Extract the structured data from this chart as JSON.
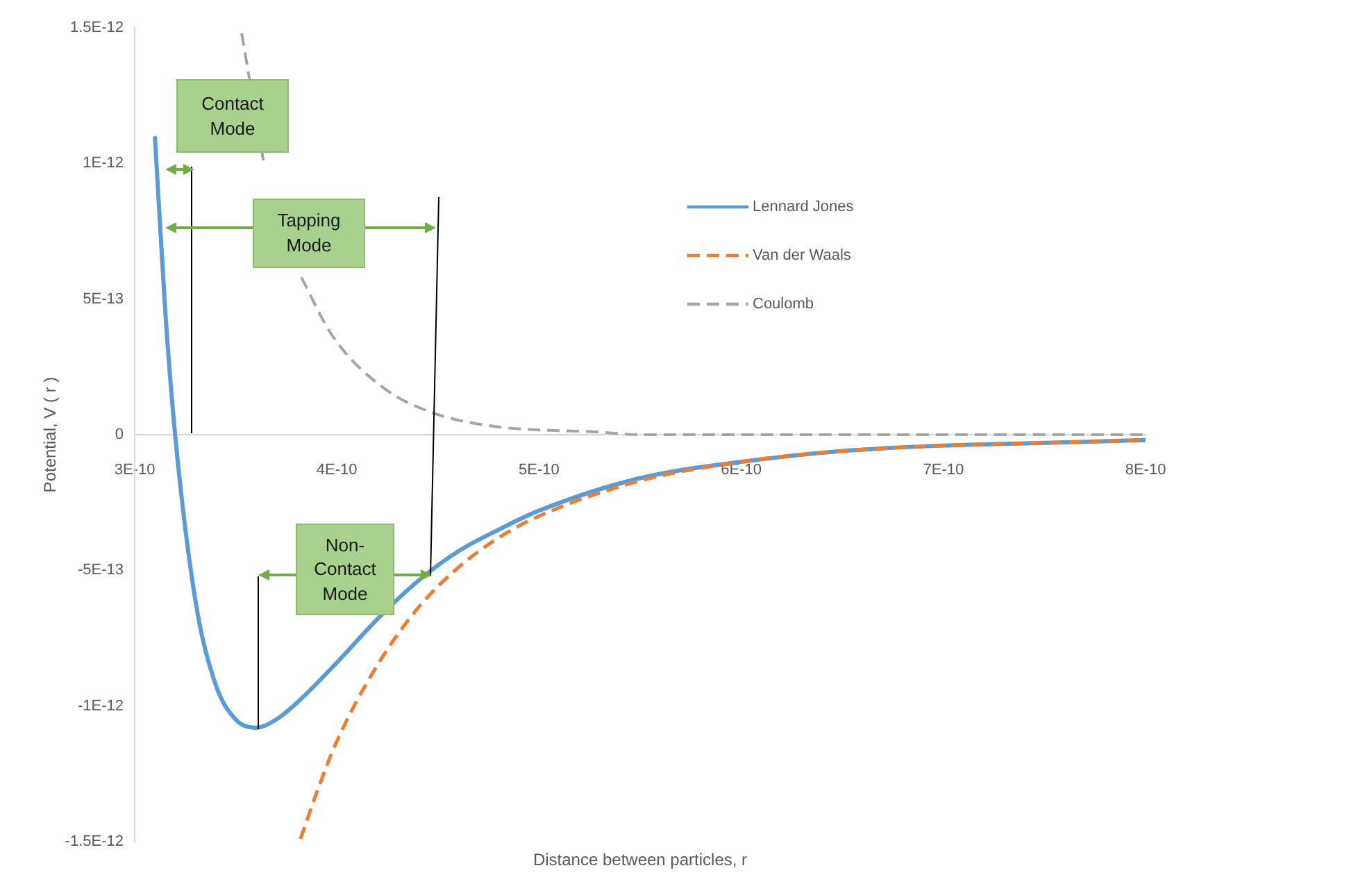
{
  "chart_data": {
    "type": "line",
    "xlabel": "Distance between particles, r",
    "ylabel": "Potential, V ( r )",
    "xlim": [
      3e-10,
      8e-10
    ],
    "ylim": [
      -1.5e-12,
      1.5e-12
    ],
    "xticks": [
      {
        "value": 3e-10,
        "label": "3E-10"
      },
      {
        "value": 4e-10,
        "label": "4E-10"
      },
      {
        "value": 5e-10,
        "label": "5E-10"
      },
      {
        "value": 6e-10,
        "label": "6E-10"
      },
      {
        "value": 7e-10,
        "label": "7E-10"
      },
      {
        "value": 8e-10,
        "label": "8E-10"
      }
    ],
    "yticks": [
      {
        "value": -1.5e-12,
        "label": "-1.5E-12"
      },
      {
        "value": -1e-12,
        "label": "-1E-12"
      },
      {
        "value": -5e-13,
        "label": "-5E-13"
      },
      0,
      {
        "value": 5e-13,
        "label": "5E-13"
      },
      {
        "value": 1e-12,
        "label": "1E-12"
      },
      {
        "value": 1.5e-12,
        "label": "1.5E-12"
      }
    ],
    "grid": false,
    "legend": "top",
    "marker": "none",
    "series": [
      {
        "name": "Lennard Jones",
        "color": "#5b9bd5",
        "line_style": "solid",
        "x": [
          3.1e-10,
          3.15e-10,
          3.2e-10,
          3.3e-10,
          3.4e-10,
          3.5e-10,
          3.6e-10,
          3.7e-10,
          3.8e-10,
          4e-10,
          4.2e-10,
          4.4e-10,
          4.6e-10,
          4.8e-10,
          5e-10,
          5.5e-10,
          6e-10,
          6.5e-10,
          7e-10,
          7.5e-10,
          8e-10
        ],
        "values": [
          1.1e-12,
          4.7e-13,
          0,
          -6.1e-13,
          -9.2e-13,
          -1.05e-12,
          -1.08e-12,
          -1.05e-12,
          -9.9e-13,
          -8.4e-13,
          -6.8e-13,
          -5.4e-13,
          -4.3e-13,
          -3.5e-13,
          -2.8e-13,
          -1.6e-13,
          -1e-13,
          -6e-14,
          -4e-14,
          -3e-14,
          -2e-14
        ]
      },
      {
        "name": "Van der Waals",
        "color": "#ed7d31",
        "line_style": "dashed",
        "x": [
          3.82e-10,
          3.9e-10,
          4e-10,
          4.2e-10,
          4.4e-10,
          4.6e-10,
          4.8e-10,
          5e-10,
          5.5e-10,
          6e-10,
          6.5e-10,
          7e-10,
          7.5e-10,
          8e-10
        ],
        "values": [
          -1.49e-12,
          -1.32e-12,
          -1.13e-12,
          -8.5e-13,
          -6.4e-13,
          -4.9e-13,
          -3.8e-13,
          -3e-13,
          -1.7e-13,
          -1e-13,
          -6e-14,
          -4e-14,
          -3e-14,
          -2e-14
        ]
      },
      {
        "name": "Coulomb",
        "color": "#a5a5a5",
        "line_style": "dashed",
        "x": [
          3.529e-10,
          3.639e-10,
          3.707e-10,
          3.824e-10,
          3.982e-10,
          4.236e-10,
          4.477e-10,
          4.786e-10,
          5.287e-10,
          5.5e-10,
          6e-10,
          7e-10,
          8e-10
        ],
        "values": [
          1.48e-12,
          1e-12,
          null,
          5.8e-13,
          3.6e-13,
          1.7e-13,
          8e-14,
          3e-14,
          1e-14,
          0,
          0,
          0,
          0
        ]
      }
    ],
    "annotations": [
      "Contact Mode",
      "Tapping Mode",
      "Non-Contact Mode"
    ]
  }
}
